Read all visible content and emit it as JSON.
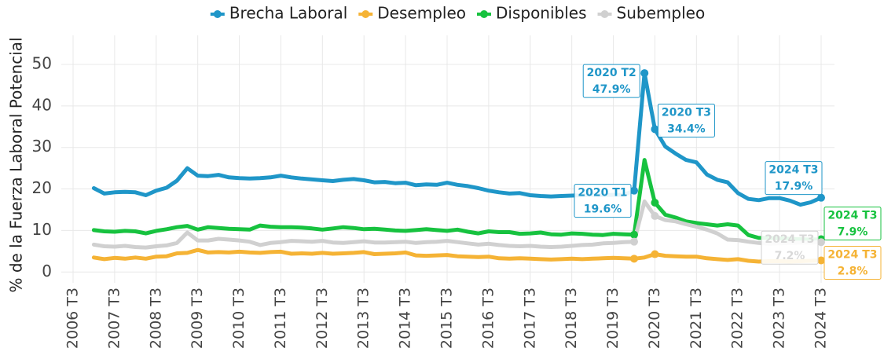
{
  "chart_data": {
    "type": "line",
    "y_label": "% de la Fuerza Laboral Potencial",
    "categories": [
      "2006 T3",
      null,
      null,
      null,
      "2007 T3",
      null,
      null,
      null,
      "2008 T3",
      null,
      null,
      null,
      "2009 T3",
      null,
      null,
      null,
      "2010 T3",
      null,
      null,
      null,
      "2011 T3",
      null,
      null,
      null,
      "2012 T3",
      null,
      null,
      null,
      "2013 T3",
      null,
      null,
      null,
      "2014 T3",
      null,
      null,
      null,
      "2015 T3",
      null,
      null,
      null,
      "2016 T3",
      null,
      null,
      null,
      "2017 T3",
      null,
      null,
      null,
      "2018 T3",
      null,
      null,
      null,
      "2019 T3",
      null,
      null,
      null,
      "2020 T3",
      null,
      null,
      null,
      "2021 T3",
      null,
      null,
      null,
      "2022 T3",
      null,
      null,
      null,
      "2023 T3",
      null,
      null,
      null,
      "2024 T3"
    ],
    "ylim": [
      -2.6,
      57
    ],
    "yticks": [
      0,
      10,
      20,
      30,
      40,
      50
    ],
    "grid": true,
    "legend": "top",
    "series": [
      {
        "name": "Brecha Laboral",
        "color": "#1f96c8",
        "values": [
          null,
          null,
          20.2,
          18.9,
          19.2,
          19.3,
          19.2,
          18.5,
          19.6,
          20.3,
          22.0,
          25.0,
          23.2,
          23.1,
          23.4,
          22.8,
          22.6,
          22.5,
          22.6,
          22.8,
          23.2,
          22.8,
          22.5,
          22.3,
          22.1,
          21.9,
          22.2,
          22.4,
          22.1,
          21.6,
          21.7,
          21.4,
          21.5,
          20.9,
          21.1,
          21.0,
          21.5,
          21.0,
          20.7,
          20.2,
          19.6,
          19.2,
          18.9,
          19.0,
          18.5,
          18.3,
          18.2,
          18.3,
          18.4,
          18.5,
          18.6,
          18.5,
          18.6,
          18.6,
          19.6,
          47.9,
          34.4,
          30.2,
          28.5,
          27.0,
          26.4,
          23.5,
          22.2,
          21.6,
          19.0,
          17.6,
          17.3,
          17.8,
          17.8,
          17.2,
          16.2,
          16.8,
          17.9
        ],
        "label_periods": [
          null,
          null,
          null,
          null,
          null,
          null,
          null,
          null,
          null,
          null,
          null,
          null,
          null,
          null,
          null,
          null,
          null,
          null,
          null,
          null,
          null,
          null,
          null,
          null,
          null,
          null,
          null,
          null,
          null,
          null,
          null,
          null,
          null,
          null,
          null,
          null,
          null,
          null,
          null,
          null,
          null,
          null,
          null,
          null,
          null,
          null,
          null,
          null,
          null,
          null,
          null,
          null,
          null,
          null,
          "2020 T1",
          "2020 T2",
          "2020 T3",
          null,
          null,
          null,
          null,
          null,
          null,
          null,
          null,
          null,
          null,
          null,
          null,
          null,
          null,
          null,
          "2024 T3"
        ],
        "value_labels": [
          null,
          null,
          null,
          null,
          null,
          null,
          null,
          null,
          null,
          null,
          null,
          null,
          null,
          null,
          null,
          null,
          null,
          null,
          null,
          null,
          null,
          null,
          null,
          null,
          null,
          null,
          null,
          null,
          null,
          null,
          null,
          null,
          null,
          null,
          null,
          null,
          null,
          null,
          null,
          null,
          null,
          null,
          null,
          null,
          null,
          null,
          null,
          null,
          null,
          null,
          null,
          null,
          null,
          null,
          "19.6%",
          "47.9%",
          "34.4%",
          null,
          null,
          null,
          null,
          null,
          null,
          null,
          null,
          null,
          null,
          null,
          null,
          null,
          null,
          null,
          "17.9%"
        ]
      },
      {
        "name": "Desempleo",
        "color": "#f5b335",
        "values": [
          null,
          null,
          3.5,
          3.1,
          3.4,
          3.2,
          3.5,
          3.2,
          3.7,
          3.8,
          4.5,
          4.6,
          5.3,
          4.7,
          4.8,
          4.7,
          4.9,
          4.7,
          4.6,
          4.8,
          4.9,
          4.4,
          4.5,
          4.4,
          4.6,
          4.4,
          4.5,
          4.6,
          4.8,
          4.3,
          4.4,
          4.5,
          4.7,
          4.0,
          3.9,
          4.0,
          4.1,
          3.8,
          3.7,
          3.6,
          3.7,
          3.3,
          3.2,
          3.3,
          3.2,
          3.1,
          3.0,
          3.1,
          3.2,
          3.1,
          3.2,
          3.3,
          3.4,
          3.3,
          3.2,
          3.5,
          4.3,
          3.9,
          3.8,
          3.7,
          3.7,
          3.3,
          3.1,
          2.9,
          3.1,
          2.7,
          2.5,
          2.6,
          2.6,
          2.5,
          2.6,
          2.7,
          2.8
        ],
        "label_periods": [
          null,
          null,
          null,
          null,
          null,
          null,
          null,
          null,
          null,
          null,
          null,
          null,
          null,
          null,
          null,
          null,
          null,
          null,
          null,
          null,
          null,
          null,
          null,
          null,
          null,
          null,
          null,
          null,
          null,
          null,
          null,
          null,
          null,
          null,
          null,
          null,
          null,
          null,
          null,
          null,
          null,
          null,
          null,
          null,
          null,
          null,
          null,
          null,
          null,
          null,
          null,
          null,
          null,
          null,
          null,
          null,
          null,
          null,
          null,
          null,
          null,
          null,
          null,
          null,
          null,
          null,
          null,
          null,
          null,
          null,
          null,
          null,
          "2024 T3"
        ],
        "value_labels": [
          null,
          null,
          null,
          null,
          null,
          null,
          null,
          null,
          null,
          null,
          null,
          null,
          null,
          null,
          null,
          null,
          null,
          null,
          null,
          null,
          null,
          null,
          null,
          null,
          null,
          null,
          null,
          null,
          null,
          null,
          null,
          null,
          null,
          null,
          null,
          null,
          null,
          null,
          null,
          null,
          null,
          null,
          null,
          null,
          null,
          null,
          null,
          null,
          null,
          null,
          null,
          null,
          null,
          null,
          null,
          null,
          null,
          null,
          null,
          null,
          null,
          null,
          null,
          null,
          null,
          null,
          null,
          null,
          null,
          null,
          null,
          null,
          "2.8%"
        ]
      },
      {
        "name": "Disponibles",
        "color": "#17c23f",
        "values": [
          null,
          null,
          10.1,
          9.8,
          9.7,
          9.9,
          9.8,
          9.3,
          9.9,
          10.3,
          10.8,
          11.1,
          10.2,
          10.8,
          10.6,
          10.4,
          10.3,
          10.2,
          11.2,
          10.9,
          10.8,
          10.8,
          10.7,
          10.5,
          10.2,
          10.5,
          10.8,
          10.6,
          10.3,
          10.4,
          10.2,
          10.0,
          9.9,
          10.1,
          10.3,
          10.1,
          9.9,
          10.2,
          9.7,
          9.3,
          9.8,
          9.6,
          9.6,
          9.2,
          9.3,
          9.5,
          9.1,
          9.0,
          9.3,
          9.2,
          9.0,
          8.9,
          9.2,
          9.1,
          9.0,
          27.0,
          16.7,
          13.8,
          13.1,
          12.2,
          11.8,
          11.5,
          11.2,
          11.5,
          11.2,
          8.9,
          8.2,
          8.2,
          8.1,
          8.0,
          7.9,
          7.8,
          7.9
        ],
        "label_periods": [
          null,
          null,
          null,
          null,
          null,
          null,
          null,
          null,
          null,
          null,
          null,
          null,
          null,
          null,
          null,
          null,
          null,
          null,
          null,
          null,
          null,
          null,
          null,
          null,
          null,
          null,
          null,
          null,
          null,
          null,
          null,
          null,
          null,
          null,
          null,
          null,
          null,
          null,
          null,
          null,
          null,
          null,
          null,
          null,
          null,
          null,
          null,
          null,
          null,
          null,
          null,
          null,
          null,
          null,
          null,
          null,
          null,
          null,
          null,
          null,
          null,
          null,
          null,
          null,
          null,
          null,
          null,
          null,
          null,
          null,
          null,
          null,
          "2024 T3"
        ],
        "value_labels": [
          null,
          null,
          null,
          null,
          null,
          null,
          null,
          null,
          null,
          null,
          null,
          null,
          null,
          null,
          null,
          null,
          null,
          null,
          null,
          null,
          null,
          null,
          null,
          null,
          null,
          null,
          null,
          null,
          null,
          null,
          null,
          null,
          null,
          null,
          null,
          null,
          null,
          null,
          null,
          null,
          null,
          null,
          null,
          null,
          null,
          null,
          null,
          null,
          null,
          null,
          null,
          null,
          null,
          null,
          null,
          null,
          null,
          null,
          null,
          null,
          null,
          null,
          null,
          null,
          null,
          null,
          null,
          null,
          null,
          null,
          null,
          null,
          "7.9%"
        ]
      },
      {
        "name": "Subempleo",
        "color": "#d0d0d0",
        "values": [
          null,
          null,
          6.6,
          6.2,
          6.1,
          6.3,
          6.0,
          5.9,
          6.2,
          6.4,
          7.0,
          9.5,
          7.6,
          7.6,
          8.0,
          7.8,
          7.6,
          7.3,
          6.5,
          7.0,
          7.2,
          7.5,
          7.4,
          7.3,
          7.5,
          7.1,
          7.0,
          7.2,
          7.4,
          7.1,
          7.1,
          7.2,
          7.3,
          7.0,
          7.2,
          7.3,
          7.5,
          7.2,
          6.9,
          6.6,
          6.8,
          6.5,
          6.3,
          6.2,
          6.3,
          6.1,
          6.0,
          6.1,
          6.3,
          6.5,
          6.6,
          6.9,
          7.0,
          7.2,
          7.3,
          17.0,
          13.5,
          12.5,
          12.2,
          11.5,
          10.9,
          10.2,
          9.3,
          7.8,
          7.7,
          7.3,
          7.0,
          6.8,
          6.9,
          7.0,
          7.1,
          7.1,
          7.2
        ],
        "label_periods": [
          null,
          null,
          null,
          null,
          null,
          null,
          null,
          null,
          null,
          null,
          null,
          null,
          null,
          null,
          null,
          null,
          null,
          null,
          null,
          null,
          null,
          null,
          null,
          null,
          null,
          null,
          null,
          null,
          null,
          null,
          null,
          null,
          null,
          null,
          null,
          null,
          null,
          null,
          null,
          null,
          null,
          null,
          null,
          null,
          null,
          null,
          null,
          null,
          null,
          null,
          null,
          null,
          null,
          null,
          null,
          null,
          null,
          null,
          null,
          null,
          null,
          null,
          null,
          null,
          null,
          null,
          null,
          null,
          null,
          null,
          null,
          null,
          "2024 T3"
        ],
        "value_labels": [
          null,
          null,
          null,
          null,
          null,
          null,
          null,
          null,
          null,
          null,
          null,
          null,
          null,
          null,
          null,
          null,
          null,
          null,
          null,
          null,
          null,
          null,
          null,
          null,
          null,
          null,
          null,
          null,
          null,
          null,
          null,
          null,
          null,
          null,
          null,
          null,
          null,
          null,
          null,
          null,
          null,
          null,
          null,
          null,
          null,
          null,
          null,
          null,
          null,
          null,
          null,
          null,
          null,
          null,
          null,
          null,
          null,
          null,
          null,
          null,
          null,
          null,
          null,
          null,
          null,
          null,
          null,
          null,
          null,
          null,
          null,
          null,
          "7.2%"
        ]
      }
    ]
  }
}
